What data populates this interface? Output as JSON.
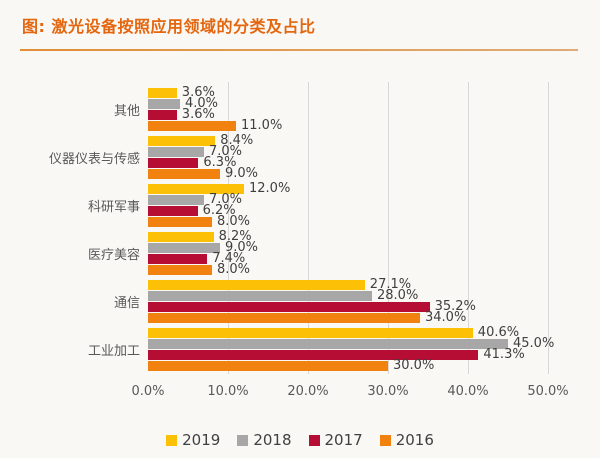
{
  "title": "图: 激光设备按照应用领域的分类及占比",
  "chart_data": {
    "type": "bar",
    "orientation": "horizontal",
    "title": "图: 激光设备按照应用领域的分类及占比",
    "categories": [
      "其他",
      "仪器仪表与传感",
      "科研军事",
      "医疗美容",
      "通信",
      "工业加工"
    ],
    "series": [
      {
        "name": "2019",
        "color": "#FCC006",
        "values": [
          3.6,
          8.4,
          12.0,
          8.2,
          27.1,
          40.6
        ]
      },
      {
        "name": "2018",
        "color": "#A7A7A7",
        "values": [
          4.0,
          7.0,
          7.0,
          9.0,
          28.0,
          45.0
        ]
      },
      {
        "name": "2017",
        "color": "#B50D33",
        "values": [
          3.6,
          6.3,
          6.2,
          7.4,
          35.2,
          41.3
        ]
      },
      {
        "name": "2016",
        "color": "#F28210",
        "values": [
          11.0,
          9.0,
          8.0,
          8.0,
          34.0,
          30.0
        ]
      }
    ],
    "xlim": [
      0,
      50
    ],
    "x_ticks": [
      "0.0%",
      "10.0%",
      "20.0%",
      "30.0%",
      "40.0%",
      "50.0%"
    ],
    "value_label_suffix": "%",
    "grid": "vertical gridlines every 10%",
    "legend_position": "bottom",
    "legend": [
      "2019",
      "2018",
      "2017",
      "2016"
    ]
  },
  "colors": {
    "title": "#E4660E",
    "divider": "#E09B52",
    "gridline": "#D8D8D8",
    "category_label": "#595959",
    "value_label": "#3F3F3F",
    "axis_tick": "#595959",
    "background": "#FAF8F5"
  }
}
